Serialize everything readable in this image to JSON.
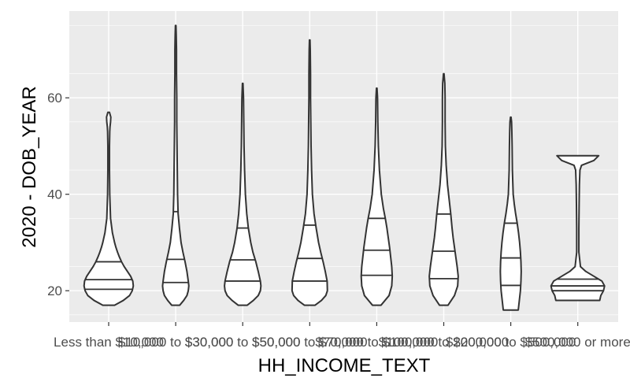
{
  "chart_data": {
    "type": "violin",
    "xlabel": "HH_INCOME_TEXT",
    "ylabel": "2020 - DOB_YEAR",
    "ylim": [
      13.5,
      78
    ],
    "yticks": [
      20,
      40,
      60
    ],
    "grid": true,
    "legend": "none",
    "colors": {
      "panel": "#EBEBEB",
      "grid": "#FFFFFF",
      "outline": "#333333",
      "fill": "#FFFFFF",
      "tick_text": "#4D4D4D"
    },
    "categories": [
      "Less than $10,000",
      "$10,000 to $30,000",
      "$30,000 to $50,000",
      "$50,000 to $70,000",
      "$70,000 to $100,000",
      "$100,000 to $200,000",
      "$200,000 to $500,000",
      "$500,000 or more"
    ],
    "violins": [
      {
        "min": 17,
        "max": 57,
        "quantiles": [
          20.3,
          22.3,
          26.0
        ],
        "profile": [
          [
            17,
            0.22
          ],
          [
            18,
            0.55
          ],
          [
            19,
            0.78
          ],
          [
            20,
            0.88
          ],
          [
            21,
            0.92
          ],
          [
            22,
            0.9
          ],
          [
            23,
            0.82
          ],
          [
            24,
            0.7
          ],
          [
            25,
            0.58
          ],
          [
            26,
            0.48
          ],
          [
            27,
            0.4
          ],
          [
            28,
            0.33
          ],
          [
            29,
            0.27
          ],
          [
            30,
            0.22
          ],
          [
            32,
            0.14
          ],
          [
            35,
            0.07
          ],
          [
            40,
            0.04
          ],
          [
            45,
            0.03
          ],
          [
            50,
            0.03
          ],
          [
            53,
            0.04
          ],
          [
            54,
            0.05
          ],
          [
            55,
            0.07
          ],
          [
            56,
            0.08
          ],
          [
            57,
            0.03
          ]
        ]
      },
      {
        "min": 17,
        "max": 75,
        "quantiles": [
          21.7,
          26.5,
          36.4
        ],
        "profile": [
          [
            17,
            0.15
          ],
          [
            18,
            0.3
          ],
          [
            19,
            0.42
          ],
          [
            20,
            0.47
          ],
          [
            21,
            0.49
          ],
          [
            22,
            0.47
          ],
          [
            24,
            0.42
          ],
          [
            26,
            0.35
          ],
          [
            28,
            0.27
          ],
          [
            30,
            0.2
          ],
          [
            33,
            0.14
          ],
          [
            36,
            0.09
          ],
          [
            40,
            0.07
          ],
          [
            45,
            0.06
          ],
          [
            50,
            0.05
          ],
          [
            55,
            0.04
          ],
          [
            60,
            0.04
          ],
          [
            65,
            0.03
          ],
          [
            70,
            0.03
          ],
          [
            73,
            0.02
          ],
          [
            75,
            0.01
          ]
        ]
      },
      {
        "min": 17,
        "max": 63,
        "quantiles": [
          22.0,
          26.4,
          33.0
        ],
        "profile": [
          [
            17,
            0.17
          ],
          [
            18,
            0.4
          ],
          [
            19,
            0.58
          ],
          [
            20,
            0.66
          ],
          [
            21,
            0.68
          ],
          [
            22,
            0.66
          ],
          [
            24,
            0.58
          ],
          [
            26,
            0.49
          ],
          [
            28,
            0.38
          ],
          [
            30,
            0.3
          ],
          [
            33,
            0.21
          ],
          [
            36,
            0.15
          ],
          [
            40,
            0.1
          ],
          [
            45,
            0.07
          ],
          [
            50,
            0.05
          ],
          [
            55,
            0.04
          ],
          [
            60,
            0.03
          ],
          [
            63,
            0.01
          ]
        ]
      },
      {
        "min": 17,
        "max": 72,
        "quantiles": [
          22.0,
          26.7,
          33.6
        ],
        "profile": [
          [
            17,
            0.2
          ],
          [
            18,
            0.44
          ],
          [
            19,
            0.6
          ],
          [
            20,
            0.66
          ],
          [
            22,
            0.65
          ],
          [
            24,
            0.58
          ],
          [
            26,
            0.5
          ],
          [
            28,
            0.41
          ],
          [
            30,
            0.33
          ],
          [
            33,
            0.24
          ],
          [
            36,
            0.16
          ],
          [
            40,
            0.1
          ],
          [
            45,
            0.07
          ],
          [
            50,
            0.05
          ],
          [
            55,
            0.04
          ],
          [
            60,
            0.03
          ],
          [
            65,
            0.03
          ],
          [
            70,
            0.02
          ],
          [
            72,
            0.01
          ]
        ]
      },
      {
        "min": 17,
        "max": 62,
        "quantiles": [
          23.2,
          28.4,
          35.0
        ],
        "profile": [
          [
            17,
            0.16
          ],
          [
            19,
            0.46
          ],
          [
            21,
            0.56
          ],
          [
            23,
            0.58
          ],
          [
            25,
            0.56
          ],
          [
            27,
            0.52
          ],
          [
            29,
            0.48
          ],
          [
            31,
            0.43
          ],
          [
            33,
            0.38
          ],
          [
            35,
            0.32
          ],
          [
            37,
            0.25
          ],
          [
            40,
            0.17
          ],
          [
            45,
            0.1
          ],
          [
            50,
            0.06
          ],
          [
            55,
            0.04
          ],
          [
            60,
            0.03
          ],
          [
            62,
            0.01
          ]
        ]
      },
      {
        "min": 17,
        "max": 65,
        "quantiles": [
          22.5,
          28.2,
          35.9
        ],
        "profile": [
          [
            17,
            0.16
          ],
          [
            19,
            0.4
          ],
          [
            21,
            0.52
          ],
          [
            23,
            0.54
          ],
          [
            25,
            0.5
          ],
          [
            27,
            0.45
          ],
          [
            29,
            0.4
          ],
          [
            31,
            0.35
          ],
          [
            33,
            0.31
          ],
          [
            36,
            0.26
          ],
          [
            39,
            0.2
          ],
          [
            42,
            0.14
          ],
          [
            46,
            0.09
          ],
          [
            50,
            0.06
          ],
          [
            55,
            0.05
          ],
          [
            60,
            0.05
          ],
          [
            63,
            0.04
          ],
          [
            65,
            0.01
          ]
        ]
      },
      {
        "min": 16,
        "max": 56,
        "quantiles": [
          21.1,
          26.8,
          34.0
        ],
        "profile": [
          [
            16,
            0.28
          ],
          [
            18,
            0.32
          ],
          [
            20,
            0.36
          ],
          [
            22,
            0.38
          ],
          [
            24,
            0.39
          ],
          [
            26,
            0.38
          ],
          [
            28,
            0.36
          ],
          [
            30,
            0.33
          ],
          [
            32,
            0.29
          ],
          [
            34,
            0.24
          ],
          [
            36,
            0.18
          ],
          [
            38,
            0.13
          ],
          [
            40,
            0.09
          ],
          [
            45,
            0.06
          ],
          [
            50,
            0.05
          ],
          [
            53,
            0.04
          ],
          [
            55,
            0.03
          ],
          [
            56,
            0.01
          ]
        ]
      },
      {
        "min": 18,
        "max": 48,
        "quantiles": [
          20.0,
          21.0,
          22.4
        ],
        "profile": [
          [
            18,
            0.82
          ],
          [
            19,
            0.86
          ],
          [
            20,
            0.96
          ],
          [
            21,
            1.0
          ],
          [
            22,
            0.9
          ],
          [
            23,
            0.6
          ],
          [
            24,
            0.3
          ],
          [
            25,
            0.1
          ],
          [
            28,
            0.04
          ],
          [
            33,
            0.04
          ],
          [
            38,
            0.05
          ],
          [
            42,
            0.06
          ],
          [
            45,
            0.08
          ],
          [
            46,
            0.14
          ],
          [
            47,
            0.6
          ],
          [
            48,
            0.78
          ]
        ]
      }
    ]
  }
}
